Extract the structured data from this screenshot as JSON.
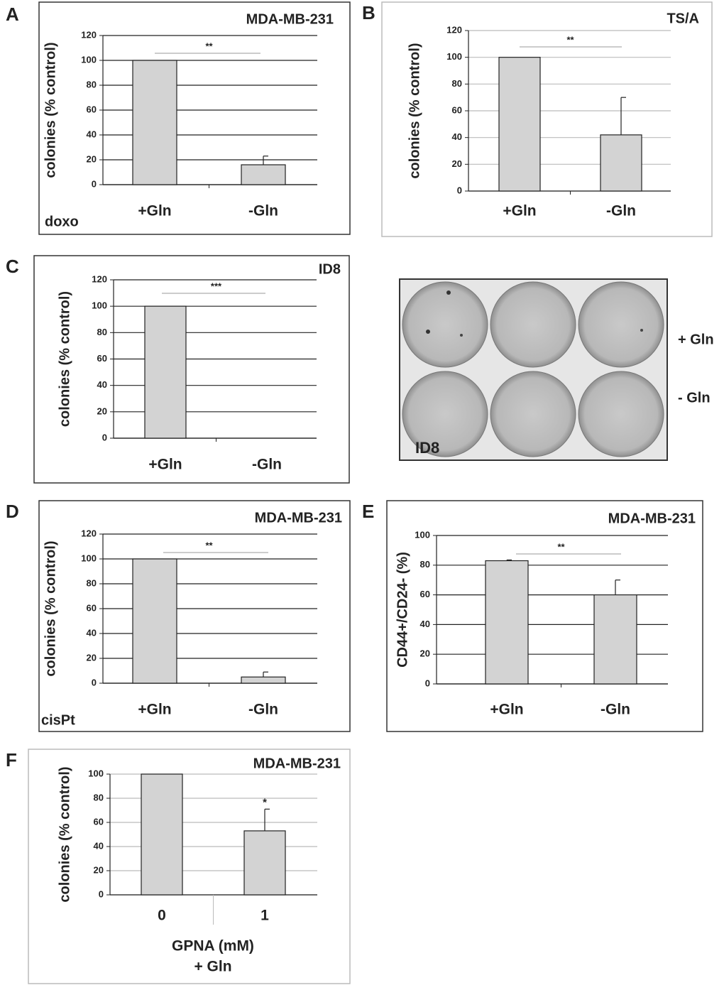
{
  "chart_data": [
    {
      "type": "bar",
      "panel": "A",
      "title": "MDA-MB-231",
      "y_label": "colonies (% control)",
      "categories": [
        "+Gln",
        "-Gln"
      ],
      "values": [
        100,
        16
      ],
      "errors": [
        null,
        7
      ],
      "color": "#d3d3d3",
      "ylim": [
        0,
        120
      ],
      "yticks": [
        0,
        20,
        40,
        60,
        80,
        100,
        120
      ],
      "grid": true,
      "grid_color": "#222222",
      "annotation": "**",
      "note": "doxo"
    },
    {
      "type": "bar",
      "panel": "B",
      "title": "TS/A",
      "y_label": "colonies (% control)",
      "categories": [
        "+Gln",
        "-Gln"
      ],
      "values": [
        100,
        42
      ],
      "errors": [
        null,
        28
      ],
      "color": "#d3d3d3",
      "ylim": [
        0,
        120
      ],
      "yticks": [
        0,
        20,
        40,
        60,
        80,
        100,
        120
      ],
      "grid": true,
      "grid_color": "#bbbbbb",
      "annotation": "**"
    },
    {
      "type": "bar",
      "panel": "C",
      "title": "ID8",
      "y_label": "colonies (% control)",
      "categories": [
        "+Gln",
        "-Gln"
      ],
      "values": [
        100,
        0
      ],
      "errors": [
        null,
        null
      ],
      "color": "#d3d3d3",
      "ylim": [
        0,
        120
      ],
      "yticks": [
        0,
        20,
        40,
        60,
        80,
        100,
        120
      ],
      "grid": true,
      "grid_color": "#222222",
      "annotation": "***"
    },
    {
      "type": "bar",
      "panel": "D",
      "title": "MDA-MB-231",
      "y_label": "colonies (% control)",
      "categories": [
        "+Gln",
        "-Gln"
      ],
      "values": [
        100,
        5
      ],
      "errors": [
        null,
        4
      ],
      "color": "#d3d3d3",
      "ylim": [
        0,
        120
      ],
      "yticks": [
        0,
        20,
        40,
        60,
        80,
        100,
        120
      ],
      "grid": true,
      "grid_color": "#222222",
      "annotation": "**",
      "note": "cisPt"
    },
    {
      "type": "bar",
      "panel": "E",
      "title": "MDA-MB-231",
      "y_label": "CD44+/CD24-  (%)",
      "categories": [
        "+Gln",
        "-Gln"
      ],
      "values": [
        83,
        60
      ],
      "errors": [
        0.5,
        10
      ],
      "color": "#d3d3d3",
      "ylim": [
        0,
        100
      ],
      "yticks": [
        0,
        20,
        40,
        60,
        80,
        100
      ],
      "grid": true,
      "grid_color": "#222222",
      "annotation": "**"
    },
    {
      "type": "bar",
      "panel": "F",
      "title": "MDA-MB-231",
      "y_label": "colonies (% control)",
      "categories": [
        "0",
        "1"
      ],
      "values": [
        100,
        53
      ],
      "errors": [
        null,
        18
      ],
      "color": "#d3d3d3",
      "ylim": [
        0,
        100
      ],
      "yticks": [
        0,
        20,
        40,
        60,
        80,
        100
      ],
      "grid": true,
      "grid_color": "#bbbbbb",
      "annotation": "*",
      "x_label": [
        "GPNA (mM)",
        "+ Gln"
      ]
    }
  ],
  "photo": {
    "label": "ID8",
    "row_labels": [
      "+ Gln",
      "- Gln"
    ]
  }
}
